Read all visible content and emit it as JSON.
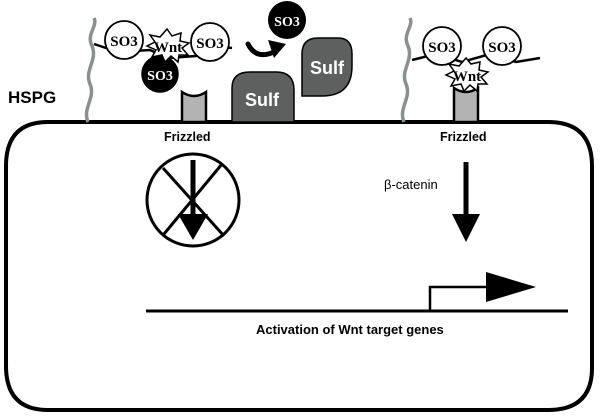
{
  "labels": {
    "hspg": "HSPG",
    "frizzled_left": "Frizzled",
    "frizzled_right": "Frizzled",
    "beta_catenin": "β-catenin",
    "activation": "Activation of Wnt target genes",
    "sulf_enzyme": "Sulf",
    "sulf_released": "Sulf",
    "wnt_left": "Wnt",
    "wnt_right": "Wnt",
    "so3_left_1": "SO3",
    "so3_left_2": "SO3",
    "so3_left_3": "SO3",
    "so3_removed": "SO3",
    "so3_right_1": "SO3",
    "so3_right_2": "SO3"
  },
  "colors": {
    "line": "#000000",
    "sulf_fill": "#5e6060",
    "sulf_text": "#ffffff",
    "receptor_fill": "#b3b3b3",
    "hspg_chain": "#8a8f8f",
    "so3_dark": "#000000",
    "so3_light": "#ffffff"
  }
}
